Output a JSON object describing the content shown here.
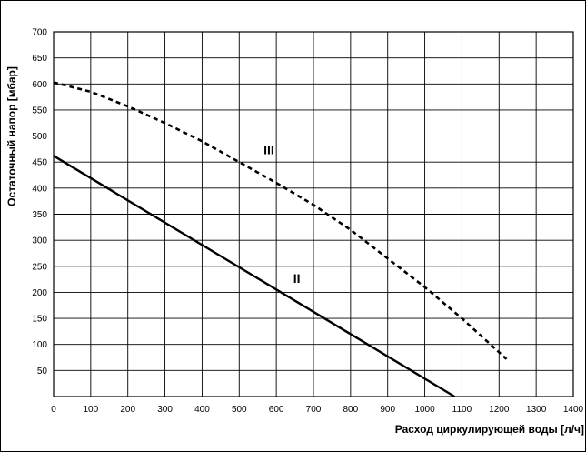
{
  "chart_data": {
    "type": "line",
    "title": "",
    "xlabel": "Расход циркулирующей воды [л/ч]",
    "ylabel": "Остаточный напор [мбар]",
    "xlim": [
      0,
      1400
    ],
    "ylim": [
      0,
      700
    ],
    "x_ticks": [
      0,
      100,
      200,
      300,
      400,
      500,
      600,
      700,
      800,
      900,
      1000,
      1100,
      1200,
      1300,
      1400
    ],
    "y_ticks": [
      50,
      100,
      150,
      200,
      250,
      300,
      350,
      400,
      450,
      500,
      550,
      600,
      650,
      700
    ],
    "grid": true,
    "series": [
      {
        "name": "III",
        "style": "dashed",
        "x": [
          0,
          100,
          200,
          300,
          400,
          500,
          600,
          700,
          800,
          900,
          1000,
          1100,
          1200,
          1220
        ],
        "y": [
          603,
          585,
          557,
          525,
          490,
          450,
          410,
          368,
          320,
          265,
          210,
          150,
          85,
          72
        ]
      },
      {
        "name": "II",
        "style": "solid",
        "x": [
          0,
          1080
        ],
        "y": [
          462,
          0
        ]
      }
    ],
    "annotations": [
      {
        "text": "III",
        "x": 580,
        "y": 465
      },
      {
        "text": "II",
        "x": 655,
        "y": 218
      }
    ]
  }
}
